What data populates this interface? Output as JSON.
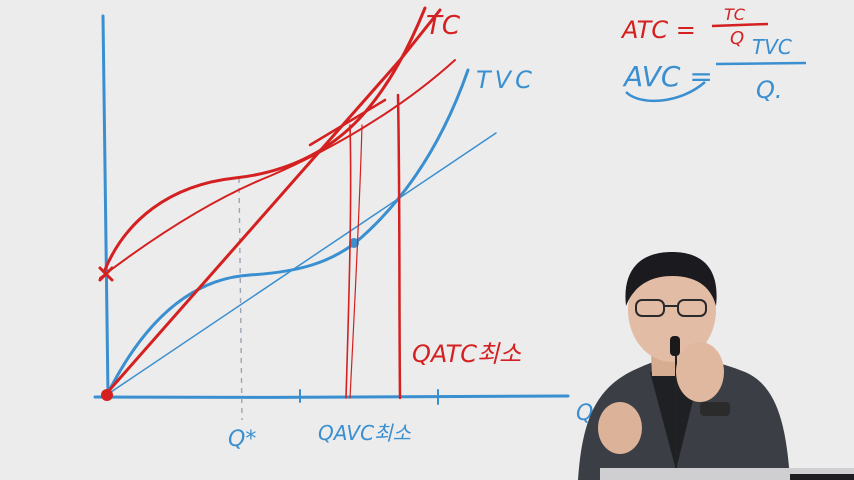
{
  "board": {
    "curves": {
      "tc_label": "TC",
      "tvc_label": "TVC"
    },
    "formulas": {
      "atc_lhs": "ATC =",
      "atc_num": "TC",
      "atc_den": "Q",
      "avc_lhs": "AVC =",
      "avc_num": "TVC",
      "avc_den": "Q."
    },
    "axis": {
      "q_label": "Q",
      "q_star": "Q*",
      "q_avc_min": "QAVC최소",
      "q_atc_min": "QATC최소"
    }
  },
  "colors": {
    "board_bg": "#ececec",
    "blue_ink": "#3a8fd0",
    "red_ink": "#d42020",
    "dark_red_ink": "#a01818"
  },
  "presenter": {
    "description_icon": "person-lecturer"
  }
}
